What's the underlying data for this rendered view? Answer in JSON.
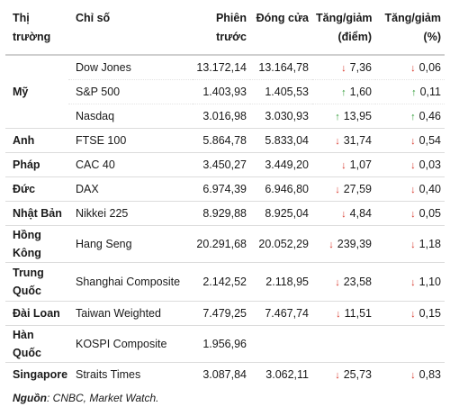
{
  "headers": {
    "market": "Thị trường",
    "index": "Chỉ số",
    "session_line1": "Phiên",
    "session_line2": "trước",
    "close": "Đóng cửa",
    "chg_pts_line1": "Tăng/giảm",
    "chg_pts_line2": "(điểm)",
    "chg_pct_line1": "Tăng/giảm",
    "chg_pct_line2": "(%)"
  },
  "rows": [
    {
      "country": "Mỹ",
      "index": "Dow Jones",
      "prev": "13.172,14",
      "close": "13.164,78",
      "dir": "down",
      "pts": "7,36",
      "pct": "0,06"
    },
    {
      "country": "",
      "index": "S&P 500",
      "prev": "1.403,93",
      "close": "1.405,53",
      "dir": "up",
      "pts": "1,60",
      "pct": "0,11"
    },
    {
      "country": "",
      "index": "Nasdaq",
      "prev": "3.016,98",
      "close": "3.030,93",
      "dir": "up",
      "pts": "13,95",
      "pct": "0,46"
    },
    {
      "country": "Anh",
      "index": "FTSE 100",
      "prev": "5.864,78",
      "close": "5.833,04",
      "dir": "down",
      "pts": "31,74",
      "pct": "0,54"
    },
    {
      "country": "Pháp",
      "index": "CAC 40",
      "prev": "3.450,27",
      "close": "3.449,20",
      "dir": "down",
      "pts": "1,07",
      "pct": "0,03"
    },
    {
      "country": "Đức",
      "index": "DAX",
      "prev": "6.974,39",
      "close": "6.946,80",
      "dir": "down",
      "pts": "27,59",
      "pct": "0,40"
    },
    {
      "country": "Nhật Bản",
      "index": "Nikkei 225",
      "prev": "8.929,88",
      "close": "8.925,04",
      "dir": "down",
      "pts": "4,84",
      "pct": "0,05"
    },
    {
      "country": "Hồng Kông",
      "index": "Hang Seng",
      "prev": "20.291,68",
      "close": "20.052,29",
      "dir": "down",
      "pts": "239,39",
      "pct": "1,18"
    },
    {
      "country": "Trung Quốc",
      "index": "Shanghai Composite",
      "prev": "2.142,52",
      "close": "2.118,95",
      "dir": "down",
      "pts": "23,58",
      "pct": "1,10"
    },
    {
      "country": "Đài Loan",
      "index": "Taiwan Weighted",
      "prev": "7.479,25",
      "close": "7.467,74",
      "dir": "down",
      "pts": "11,51",
      "pct": "0,15"
    },
    {
      "country": "Hàn Quốc",
      "index": "KOSPI Composite",
      "prev": "1.956,96",
      "close": "",
      "dir": "",
      "pts": "",
      "pct": ""
    },
    {
      "country": "Singapore",
      "index": "Straits Times",
      "prev": "3.087,84",
      "close": "3.062,11",
      "dir": "down",
      "pts": "25,73",
      "pct": "0,83"
    }
  ],
  "source_label": "Nguồn",
  "source_text": ": CNBC, Market Watch.",
  "colors": {
    "down": "#d8372b",
    "up": "#2e9a34"
  },
  "icons": {
    "down": "arrow-down-icon",
    "up": "arrow-up-icon"
  }
}
